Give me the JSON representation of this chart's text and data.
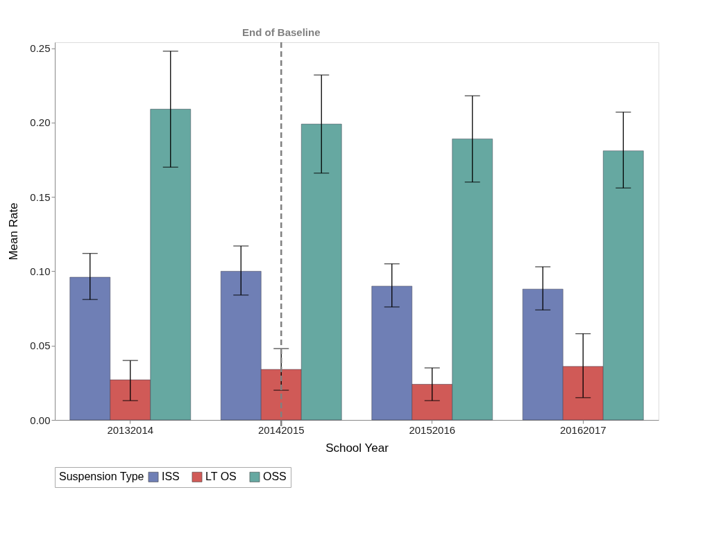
{
  "chart_data": {
    "type": "bar",
    "xlabel": "School Year",
    "ylabel": "Mean Rate",
    "legend_title": "Suspension Type",
    "categories": [
      "20132014",
      "20142015",
      "20152016",
      "20162017"
    ],
    "series": [
      {
        "name": "ISS",
        "color": "#6f7fb5",
        "values": [
          0.096,
          0.1,
          0.09,
          0.088
        ],
        "errors": [
          [
            0.081,
            0.112
          ],
          [
            0.084,
            0.117
          ],
          [
            0.076,
            0.105
          ],
          [
            0.074,
            0.103
          ]
        ]
      },
      {
        "name": "LT OS",
        "color": "#d05a57",
        "values": [
          0.027,
          0.034,
          0.024,
          0.036
        ],
        "errors": [
          [
            0.013,
            0.04
          ],
          [
            0.02,
            0.048
          ],
          [
            0.013,
            0.035
          ],
          [
            0.015,
            0.058
          ]
        ]
      },
      {
        "name": "OSS",
        "color": "#66a8a1",
        "values": [
          0.209,
          0.199,
          0.189,
          0.181
        ],
        "errors": [
          [
            0.17,
            0.248
          ],
          [
            0.166,
            0.232
          ],
          [
            0.16,
            0.218
          ],
          [
            0.156,
            0.207
          ]
        ]
      }
    ],
    "ylim": [
      0,
      0.254
    ],
    "yticks": [
      {
        "value": 0,
        "label": "0.00"
      },
      {
        "value": 0.05,
        "label": "0.05"
      },
      {
        "value": 0.1,
        "label": "0.10"
      },
      {
        "value": 0.15,
        "label": "0.15"
      },
      {
        "value": 0.2,
        "label": "0.20"
      },
      {
        "value": 0.25,
        "label": "0.25"
      }
    ],
    "ref_lines": [
      {
        "axis": "x",
        "value": "20142015",
        "label": "End of Baseline",
        "color": "#808080",
        "line_style": "dashed"
      }
    ],
    "grid": false,
    "legend": "bottom"
  }
}
